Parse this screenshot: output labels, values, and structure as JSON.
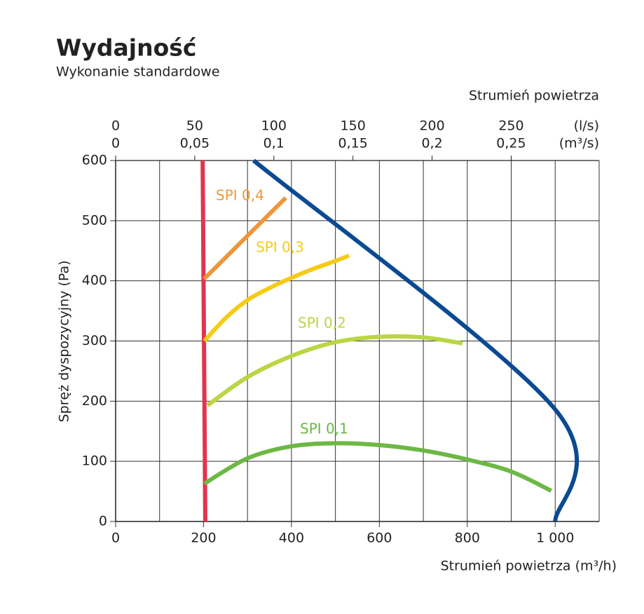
{
  "chart_data": {
    "type": "line",
    "title": "Wydajność",
    "subtitle": "Wykonanie standardowe",
    "xlabel": "Strumień powietrza (m³/h)",
    "ylabel": "Spręż dyspozycyjny (Pa)",
    "x2label": "Strumień powietrza",
    "x2unit": "(l/s)",
    "x3unit": "(m³/s)",
    "xlim": [
      0,
      1100
    ],
    "xticks": [
      0,
      200,
      400,
      600,
      800,
      {
        "value": 1000,
        "label": "1 000"
      }
    ],
    "xgrid_minor": [
      100,
      300,
      500,
      700,
      900,
      1100
    ],
    "ylim": [
      0,
      600
    ],
    "yticks": [
      0,
      100,
      200,
      300,
      400,
      500,
      600
    ],
    "x2lim": [
      0,
      305.6
    ],
    "x2ticks": [
      0,
      50,
      100,
      150,
      200,
      250
    ],
    "x3lim": [
      0,
      0.3056
    ],
    "x3ticks": [
      0,
      {
        "value": 0.05,
        "label": "0,05"
      },
      {
        "value": 0.1,
        "label": "0,1"
      },
      {
        "value": 0.15,
        "label": "0,15"
      },
      {
        "value": 0.2,
        "label": "0,2"
      },
      {
        "value": 0.25,
        "label": "0,25"
      }
    ],
    "grid": true,
    "series": [
      {
        "color": "#e2344f",
        "x": [
          198,
          204
        ],
        "values": [
          600,
          0
        ]
      },
      {
        "color": "#0b4a93",
        "x": [
          314,
          998,
          1000
        ],
        "values": [
          600,
          188,
          0
        ]
      },
      {
        "name": "SPI 0,4",
        "color": "#ee973a",
        "x": [
          201,
          387
        ],
        "values": [
          403,
          538
        ]
      },
      {
        "name": "SPI 0,3",
        "color": "#f6cb16",
        "x": [
          202,
          250,
          300,
          350,
          400,
          450,
          500,
          531
        ],
        "values": [
          300,
          338,
          368,
          388,
          405,
          420,
          433,
          442
        ]
      },
      {
        "name": "SPI 0,2",
        "color": "#bad643",
        "x": [
          209,
          300,
          400,
          500,
          600,
          700,
          789
        ],
        "values": [
          193,
          240,
          275,
          298,
          307,
          306,
          296
        ]
      },
      {
        "name": "SPI 0,1",
        "color": "#6cb844",
        "x": [
          202,
          300,
          400,
          500,
          600,
          700,
          800,
          900,
          991
        ],
        "values": [
          63,
          105,
          125,
          130,
          127,
          118,
          103,
          83,
          51
        ]
      }
    ]
  }
}
